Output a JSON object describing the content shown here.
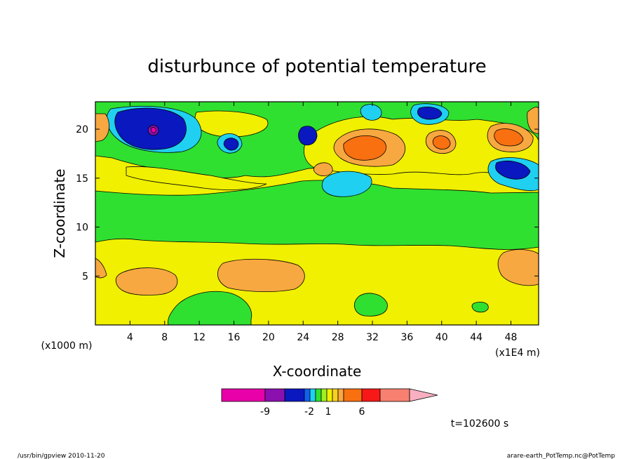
{
  "chart_data": {
    "type": "heatmap",
    "title": "disturbunce of potential temperature",
    "xlabel": "X-coordinate",
    "ylabel": "Z-coordinate",
    "x_unit_left": "(x1000 m)",
    "x_unit_right": "(x1E4 m)",
    "xlim": [
      0,
      51.2
    ],
    "ylim": [
      0,
      22.8
    ],
    "x_ticks": [
      4,
      8,
      12,
      16,
      20,
      24,
      28,
      32,
      36,
      40,
      44,
      48
    ],
    "y_ticks": [
      5,
      10,
      15,
      20
    ],
    "grid": false,
    "colorbar": {
      "colors": [
        "#e800a8",
        "#8a10b0",
        "#0a18c0",
        "#1060f0",
        "#20d0f0",
        "#30e030",
        "#a0f020",
        "#f0f000",
        "#f8d020",
        "#f8a840",
        "#f87010",
        "#f81818",
        "#f88070",
        "#f8b0c0"
      ],
      "tick_labels": [
        "-9",
        "-2",
        "1",
        "6"
      ]
    },
    "regions": [
      {
        "level": "yellow",
        "x": [
          0,
          51.2
        ],
        "y": [
          0,
          8.8
        ]
      },
      {
        "level": "green",
        "x": [
          0,
          51.2
        ],
        "y": [
          8.8,
          15.5
        ]
      },
      {
        "level": "orange",
        "x": [
          0.5,
          9.5
        ],
        "y": [
          4.2,
          6.0
        ]
      },
      {
        "level": "orange",
        "x": [
          14.5,
          24
        ],
        "y": [
          4.0,
          6.5
        ]
      },
      {
        "level": "orange",
        "x": [
          46.5,
          51.2
        ],
        "y": [
          4.3,
          7.4
        ]
      },
      {
        "level": "green",
        "x": [
          29.5,
          33.5
        ],
        "y": [
          1.2,
          2.8
        ]
      },
      {
        "level": "green",
        "x": [
          9,
          18
        ],
        "y": [
          0,
          2.5
        ]
      },
      {
        "level": "dark-blue",
        "x": [
          2.5,
          10.5
        ],
        "y": [
          17.5,
          22
        ]
      },
      {
        "level": "magenta",
        "x": [
          6.4,
          6.8
        ],
        "y": [
          19.9,
          20.4
        ]
      },
      {
        "level": "dark-blue",
        "x": [
          46,
          50.5
        ],
        "y": [
          15.4,
          17.7
        ]
      },
      {
        "level": "cyan",
        "x": [
          26,
          31
        ],
        "y": [
          13.2,
          16.1
        ]
      },
      {
        "level": "orange-red",
        "x": [
          28.5,
          33.5
        ],
        "y": [
          17.4,
          19.6
        ]
      },
      {
        "level": "orange-red",
        "x": [
          39.5,
          41.5
        ],
        "y": [
          18.3,
          19.5
        ]
      },
      {
        "level": "orange-red",
        "x": [
          46,
          49.5
        ],
        "y": [
          18.6,
          20.0
        ]
      }
    ]
  },
  "footer": {
    "time_label": "t=102600 s",
    "left_note": "/usr/bin/gpview  2010-11-20",
    "right_note": "arare-earth_PotTemp.nc@PotTemp"
  }
}
